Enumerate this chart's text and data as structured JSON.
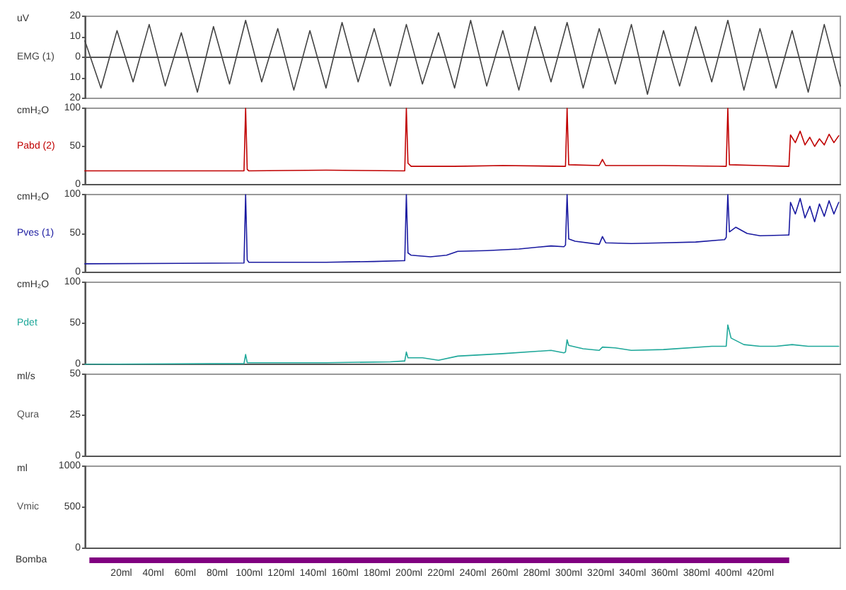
{
  "chart_data": [
    {
      "type": "line",
      "ylabel": "EMG (1)",
      "annotations": [
        "uV"
      ],
      "tick_labels": "y",
      "xlim": [
        0,
        470
      ],
      "ylim": [
        -20,
        20
      ],
      "yticks": [
        20,
        10,
        0,
        {
          "value": -10,
          "label": "10"
        },
        {
          "value": -20,
          "label": "20"
        }
      ],
      "series": [
        {
          "color": "#444444",
          "x": [
            0,
            10,
            20,
            30,
            40,
            50,
            60,
            70,
            80,
            90,
            100,
            110,
            120,
            130,
            140,
            150,
            160,
            170,
            180,
            190,
            200,
            210,
            220,
            230,
            240,
            250,
            260,
            270,
            280,
            290,
            300,
            310,
            320,
            330,
            340,
            350,
            360,
            370,
            380,
            390,
            400,
            410,
            420,
            430,
            440,
            450,
            460,
            470
          ],
          "values": [
            8,
            -15,
            13,
            -12,
            16,
            -14,
            12,
            -17,
            15,
            -13,
            18,
            -12,
            14,
            -16,
            13,
            -15,
            17,
            -12,
            14,
            -14,
            16,
            -13,
            12,
            -15,
            18,
            -14,
            13,
            -16,
            15,
            -12,
            17,
            -15,
            14,
            -13,
            16,
            -18,
            13,
            -14,
            15,
            -12,
            18,
            -16,
            14,
            -15,
            13,
            -17,
            16,
            -14
          ]
        }
      ]
    },
    {
      "type": "line",
      "ylabel": "Pabd (2)",
      "annotations": [
        "cmH₂O"
      ],
      "tick_labels": "y",
      "xlim": [
        0,
        470
      ],
      "ylim": [
        0,
        100
      ],
      "yticks": [
        0,
        50,
        100
      ],
      "series": [
        {
          "color": "#c00000",
          "x": [
            0,
            99,
            100,
            101,
            102,
            150,
            198,
            199,
            200,
            201,
            203,
            230,
            260,
            298,
            299,
            300,
            301,
            320,
            322,
            324,
            360,
            398,
            399,
            400,
            401,
            420,
            437,
            438,
            439,
            442,
            445,
            448,
            451,
            454,
            457,
            460,
            463,
            466,
            469
          ],
          "values": [
            18,
            18,
            100,
            20,
            18,
            19,
            18,
            18,
            100,
            28,
            24,
            24,
            25,
            24,
            24,
            100,
            26,
            25,
            33,
            25,
            25,
            24,
            24,
            100,
            26,
            25,
            24,
            24,
            65,
            55,
            70,
            52,
            62,
            50,
            60,
            52,
            66,
            55,
            64
          ]
        }
      ]
    },
    {
      "type": "line",
      "ylabel": "Pves (1)",
      "annotations": [
        "cmH₂O"
      ],
      "tick_labels": "y",
      "xlim": [
        0,
        470
      ],
      "ylim": [
        0,
        100
      ],
      "yticks": [
        0,
        50,
        100
      ],
      "series": [
        {
          "color": "#1a1aa0",
          "x": [
            0,
            99,
            100,
            101,
            102,
            150,
            180,
            198,
            199,
            200,
            201,
            203,
            215,
            225,
            232,
            250,
            270,
            290,
            298,
            299,
            300,
            301,
            305,
            320,
            322,
            324,
            340,
            360,
            380,
            398,
            399,
            400,
            401,
            405,
            412,
            420,
            437,
            438,
            439,
            442,
            445,
            448,
            451,
            454,
            457,
            460,
            463,
            466,
            469
          ],
          "values": [
            11,
            12,
            100,
            16,
            13,
            13,
            14,
            15,
            15,
            100,
            25,
            22,
            20,
            22,
            27,
            28,
            30,
            34,
            33,
            35,
            100,
            43,
            40,
            36,
            46,
            38,
            37,
            38,
            39,
            42,
            45,
            100,
            52,
            58,
            50,
            47,
            48,
            48,
            90,
            75,
            95,
            70,
            85,
            65,
            88,
            72,
            92,
            75,
            90
          ]
        }
      ]
    },
    {
      "type": "line",
      "ylabel": "Pdet",
      "annotations": [
        "cmH₂O"
      ],
      "tick_labels": "y",
      "xlim": [
        0,
        470
      ],
      "ylim": [
        0,
        100
      ],
      "yticks": [
        0,
        50,
        100
      ],
      "series": [
        {
          "color": "#1fa89a",
          "x": [
            0,
            99,
            100,
            101,
            150,
            190,
            198,
            199,
            200,
            201,
            210,
            220,
            232,
            260,
            290,
            298,
            299,
            300,
            301,
            310,
            320,
            322,
            330,
            340,
            360,
            390,
            398,
            399,
            400,
            402,
            410,
            420,
            430,
            440,
            450,
            469
          ],
          "values": [
            0,
            1,
            12,
            2,
            2,
            3,
            4,
            4,
            15,
            8,
            8,
            5,
            10,
            13,
            17,
            14,
            15,
            30,
            23,
            19,
            17,
            21,
            20,
            17,
            18,
            22,
            22,
            22,
            48,
            32,
            24,
            22,
            22,
            24,
            22,
            22
          ]
        }
      ]
    },
    {
      "type": "line",
      "ylabel": "Qura",
      "annotations": [
        "ml/s"
      ],
      "tick_labels": "y",
      "xlim": [
        0,
        470
      ],
      "ylim": [
        0,
        50
      ],
      "yticks": [
        0,
        25,
        50
      ]
    },
    {
      "type": "line",
      "ylabel": "Vmic",
      "annotations": [
        "ml"
      ],
      "tick_labels": "y",
      "xlim": [
        0,
        470
      ],
      "ylim": [
        0,
        1000
      ],
      "yticks": [
        0,
        500,
        1000
      ]
    },
    {
      "type": "bar",
      "orientation": "horizontal",
      "tick_labels": "x",
      "categories": [
        "Bomba"
      ],
      "values": [
        438
      ],
      "color": "#800080",
      "xlim": [
        0,
        470
      ],
      "xticks": [
        {
          "value": 20,
          "label": "20ml"
        },
        {
          "value": 40,
          "label": "40ml"
        },
        {
          "value": 60,
          "label": "60ml"
        },
        {
          "value": 80,
          "label": "80ml"
        },
        {
          "value": 100,
          "label": "100ml"
        },
        {
          "value": 120,
          "label": "120ml"
        },
        {
          "value": 140,
          "label": "140ml"
        },
        {
          "value": 160,
          "label": "160ml"
        },
        {
          "value": 180,
          "label": "180ml"
        },
        {
          "value": 200,
          "label": "200ml"
        },
        {
          "value": 220,
          "label": "220ml"
        },
        {
          "value": 240,
          "label": "240ml"
        },
        {
          "value": 260,
          "label": "260ml"
        },
        {
          "value": 280,
          "label": "280ml"
        },
        {
          "value": 300,
          "label": "300ml"
        },
        {
          "value": 320,
          "label": "320ml"
        },
        {
          "value": 340,
          "label": "340ml"
        },
        {
          "value": 360,
          "label": "360ml"
        },
        {
          "value": 380,
          "label": "380ml"
        },
        {
          "value": 400,
          "label": "400ml"
        },
        {
          "value": 420,
          "label": "420ml"
        }
      ]
    }
  ]
}
